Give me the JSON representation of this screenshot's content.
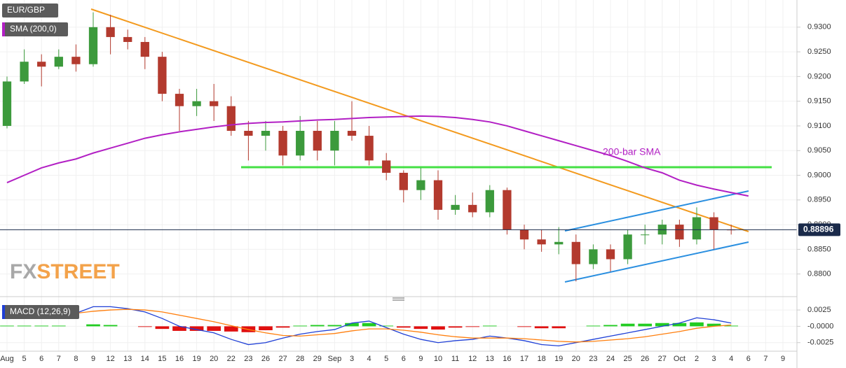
{
  "chart_data": [
    {
      "type": "candlestick",
      "title": "EUR/GBP",
      "annotation": "200-bar SMA",
      "watermark": [
        "FX",
        "STREET"
      ],
      "categories": [
        "Aug",
        "5",
        "6",
        "7",
        "8",
        "9",
        "12",
        "13",
        "14",
        "15",
        "16",
        "19",
        "20",
        "22",
        "23",
        "26",
        "27",
        "28",
        "29",
        "Sep",
        "3",
        "4",
        "5",
        "6",
        "9",
        "10",
        "11",
        "12",
        "13",
        "16",
        "17",
        "18",
        "19",
        "20",
        "23",
        "24",
        "25",
        "26",
        "27",
        "Oct",
        "2",
        "3",
        "4",
        "6",
        "7",
        "9"
      ],
      "open": [
        0.91,
        0.919,
        0.923,
        0.922,
        0.924,
        0.9225,
        0.93,
        0.928,
        0.927,
        0.924,
        0.9165,
        0.914,
        0.915,
        0.914,
        0.909,
        0.908,
        0.909,
        0.904,
        0.909,
        0.905,
        0.909,
        0.908,
        0.903,
        0.9005,
        0.897,
        0.899,
        0.893,
        0.894,
        0.8925,
        0.897,
        0.889,
        0.887,
        0.886,
        0.8865,
        0.882,
        0.885,
        0.883,
        0.888,
        0.888,
        0.89,
        0.887,
        0.8915,
        0.889,
        null,
        null,
        null
      ],
      "high": [
        0.92,
        0.9255,
        0.9245,
        0.9255,
        0.9265,
        0.933,
        0.9325,
        0.9295,
        0.928,
        0.925,
        0.9175,
        0.9175,
        0.9185,
        0.916,
        0.911,
        0.911,
        0.91,
        0.912,
        0.911,
        0.911,
        0.915,
        0.91,
        0.9045,
        0.901,
        0.9015,
        0.901,
        0.896,
        0.8965,
        0.898,
        0.8975,
        0.89,
        0.889,
        0.8895,
        0.888,
        0.886,
        0.886,
        0.889,
        0.89,
        0.891,
        0.891,
        0.8935,
        0.8925,
        0.89,
        null,
        null,
        null
      ],
      "low": [
        0.9095,
        0.9185,
        0.918,
        0.9215,
        0.921,
        0.922,
        0.9245,
        0.9255,
        0.9215,
        0.915,
        0.909,
        0.912,
        0.911,
        0.908,
        0.903,
        0.905,
        0.902,
        0.903,
        0.903,
        0.902,
        0.907,
        0.902,
        0.899,
        0.8945,
        0.895,
        0.891,
        0.892,
        0.8915,
        0.8915,
        0.888,
        0.885,
        0.8845,
        0.884,
        0.8785,
        0.881,
        0.8805,
        0.882,
        0.886,
        0.886,
        0.8855,
        0.886,
        0.885,
        0.888,
        null,
        null,
        null
      ],
      "close": [
        0.919,
        0.923,
        0.922,
        0.924,
        0.9225,
        0.93,
        0.928,
        0.927,
        0.924,
        0.9165,
        0.914,
        0.915,
        0.914,
        0.909,
        0.908,
        0.909,
        0.904,
        0.909,
        0.905,
        0.909,
        0.908,
        0.903,
        0.9005,
        0.897,
        0.899,
        0.893,
        0.894,
        0.8925,
        0.897,
        0.889,
        0.887,
        0.886,
        0.8865,
        0.882,
        0.885,
        0.883,
        0.888,
        0.888,
        0.89,
        0.887,
        0.8915,
        0.889,
        0.88896,
        null,
        null,
        null
      ],
      "up_color": "#3c9a3c",
      "down_color": "#b33a2e",
      "series": [
        {
          "name": "SMA (200,0)",
          "color": "#b21fc4",
          "values": [
            0.8985,
            0.9,
            0.9015,
            0.9025,
            0.9033,
            0.9045,
            0.9055,
            0.9065,
            0.9075,
            0.9082,
            0.9088,
            0.9093,
            0.9098,
            0.9102,
            0.9105,
            0.9107,
            0.9108,
            0.911,
            0.9112,
            0.9113,
            0.9115,
            0.9117,
            0.9118,
            0.9119,
            0.912,
            0.9119,
            0.9117,
            0.9113,
            0.9108,
            0.91,
            0.909,
            0.908,
            0.907,
            0.906,
            0.905,
            0.904,
            0.9028,
            0.9015,
            0.9005,
            0.899,
            0.898,
            0.8972,
            0.8965,
            0.8958,
            null,
            null
          ]
        }
      ],
      "last_price": {
        "value": 0.88896,
        "label": "0.88896"
      },
      "ylim": [
        0.8757,
        0.9355
      ],
      "yticks": [
        {
          "value": 0.88,
          "label": "0.8800"
        },
        {
          "value": 0.885,
          "label": "0.8850"
        },
        {
          "value": 0.89,
          "label": "0.8900"
        },
        {
          "value": 0.895,
          "label": "0.8950"
        },
        {
          "value": 0.9,
          "label": "0.9000"
        },
        {
          "value": 0.905,
          "label": "0.9050"
        },
        {
          "value": 0.91,
          "label": "0.9100"
        },
        {
          "value": 0.915,
          "label": "0.9150"
        },
        {
          "value": 0.92,
          "label": "0.9200"
        },
        {
          "value": 0.925,
          "label": "0.9250"
        },
        {
          "value": 0.93,
          "label": "0.9300"
        }
      ],
      "grid": true
    },
    {
      "type": "macd",
      "title": "MACD (12,26,9)",
      "series": [
        {
          "color": "#1f3fd6",
          "values": [
            0.0017,
            0.002,
            0.0021,
            0.0022,
            0.002,
            0.003,
            0.003,
            0.0027,
            0.0022,
            0.0012,
            0.0,
            -0.0005,
            -0.001,
            -0.002,
            -0.0028,
            -0.0025,
            -0.0018,
            -0.0012,
            -0.0008,
            -0.0005,
            0.0005,
            0.0008,
            -0.0002,
            -0.0012,
            -0.002,
            -0.0025,
            -0.0022,
            -0.002,
            -0.0015,
            -0.0018,
            -0.0022,
            -0.0028,
            -0.003,
            -0.0025,
            -0.002,
            -0.0015,
            -0.001,
            -0.0005,
            0.0,
            0.0005,
            0.0013,
            0.001,
            0.0005,
            null,
            null,
            null
          ]
        },
        {
          "color": "#ff7f0e",
          "values": [
            0.0015,
            0.0017,
            0.0019,
            0.002,
            0.002,
            0.0023,
            0.0025,
            0.0026,
            0.0025,
            0.0022,
            0.0017,
            0.0012,
            0.0007,
            0.0001,
            -0.0005,
            -0.001,
            -0.0014,
            -0.0015,
            -0.0013,
            -0.0011,
            -0.0007,
            -0.0004,
            -0.0004,
            -0.0006,
            -0.0009,
            -0.0013,
            -0.0016,
            -0.0018,
            -0.0018,
            -0.0018,
            -0.0019,
            -0.0021,
            -0.0023,
            -0.0024,
            -0.0023,
            -0.0021,
            -0.0019,
            -0.0016,
            -0.0012,
            -0.0008,
            -0.0003,
            0.0,
            0.0002,
            null,
            null,
            null
          ]
        }
      ],
      "histogram": {
        "up_color": "#22cc22",
        "down_color": "#e01010",
        "values": [
          0.0001,
          0.0001,
          0.0001,
          0.0001,
          0,
          0.0003,
          0.0002,
          0,
          -0.0001,
          -0.0004,
          -0.0007,
          -0.0007,
          -0.0007,
          -0.0008,
          -0.0009,
          -0.0006,
          -0.0002,
          0.0001,
          0.0002,
          0.0002,
          0.0005,
          0.0005,
          0.0001,
          -0.0002,
          -0.0004,
          -0.0005,
          -0.0002,
          -0.0001,
          0.0001,
          0,
          -0.0001,
          -0.0003,
          -0.0003,
          0,
          0.0001,
          0.0002,
          0.0004,
          0.0004,
          0.0005,
          0.0005,
          0.0006,
          0.0004,
          0.0001,
          null,
          null,
          null
        ]
      },
      "ylim": [
        -0.0036,
        0.0039
      ],
      "yticks": [
        {
          "value": 0.0025,
          "label": "0.0025"
        },
        {
          "value": 0,
          "label": "-0.0000"
        },
        {
          "value": -0.0025,
          "label": "-0.0025"
        }
      ],
      "grid": true
    }
  ]
}
